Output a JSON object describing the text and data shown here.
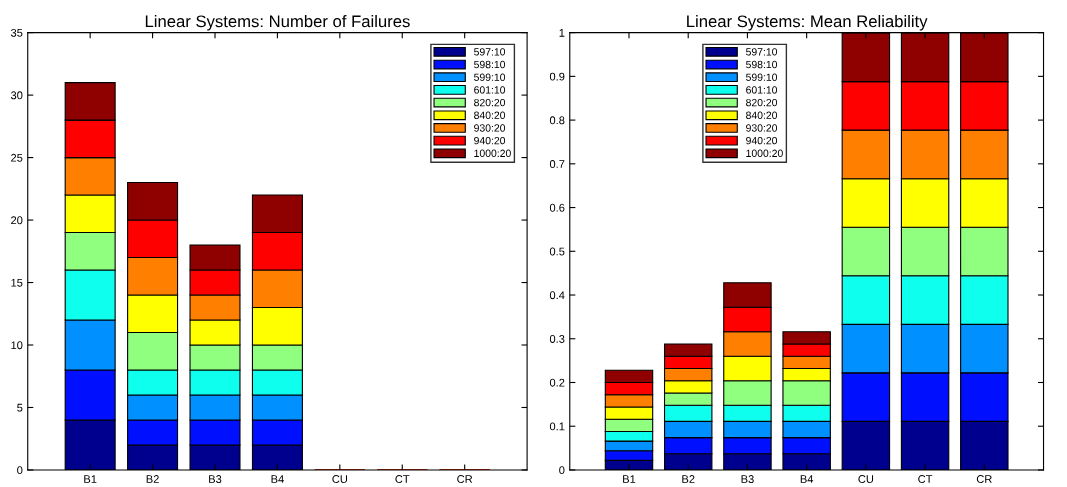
{
  "chart_data": [
    {
      "type": "bar",
      "title": "Linear Systems: Number of Failures",
      "stacked": true,
      "legend": "top right",
      "grid": false,
      "categories": [
        "B1",
        "B2",
        "B3",
        "B4",
        "CU",
        "CT",
        "CR"
      ],
      "ylim": [
        0,
        35
      ],
      "yticks": [
        0,
        5,
        10,
        15,
        20,
        25,
        30,
        35
      ],
      "series": [
        {
          "name": "597:10",
          "color": "#00008f",
          "values": [
            4,
            2,
            2,
            2,
            0,
            0,
            0
          ]
        },
        {
          "name": "598:10",
          "color": "#0010ff",
          "values": [
            4,
            2,
            2,
            2,
            0,
            0,
            0
          ]
        },
        {
          "name": "599:10",
          "color": "#0090ff",
          "values": [
            4,
            2,
            2,
            2,
            0,
            0,
            0
          ]
        },
        {
          "name": "601:10",
          "color": "#0fffef",
          "values": [
            4,
            2,
            2,
            2,
            0,
            0,
            0
          ]
        },
        {
          "name": "820:20",
          "color": "#90ff80",
          "values": [
            3,
            3,
            2,
            2,
            0,
            0,
            0
          ]
        },
        {
          "name": "840:20",
          "color": "#ffff00",
          "values": [
            3,
            3,
            2,
            3,
            0,
            0,
            0
          ]
        },
        {
          "name": "930:20",
          "color": "#ff8000",
          "values": [
            3,
            3,
            2,
            3,
            0,
            0,
            0
          ]
        },
        {
          "name": "940:20",
          "color": "#ff0000",
          "values": [
            3,
            3,
            2,
            3,
            0,
            0,
            0
          ]
        },
        {
          "name": "1000:20",
          "color": "#8f0000",
          "values": [
            3,
            3,
            2,
            3,
            0,
            0,
            0
          ]
        }
      ]
    },
    {
      "type": "bar",
      "title": "Linear Systems: Mean Reliability",
      "stacked": true,
      "legend": "top left",
      "grid": false,
      "categories": [
        "B1",
        "B2",
        "B3",
        "B4",
        "CU",
        "CT",
        "CR"
      ],
      "ylim": [
        0,
        1
      ],
      "yticks": [
        0,
        0.1,
        0.2,
        0.3,
        0.4,
        0.5,
        0.6,
        0.7,
        0.8,
        0.9,
        1
      ],
      "series": [
        {
          "name": "597:10",
          "color": "#00008f",
          "values": [
            0.022,
            0.037,
            0.037,
            0.037,
            0.111,
            0.111,
            0.111
          ]
        },
        {
          "name": "598:10",
          "color": "#0010ff",
          "values": [
            0.022,
            0.037,
            0.037,
            0.037,
            0.111,
            0.111,
            0.111
          ]
        },
        {
          "name": "599:10",
          "color": "#0090ff",
          "values": [
            0.022,
            0.037,
            0.037,
            0.037,
            0.111,
            0.111,
            0.111
          ]
        },
        {
          "name": "601:10",
          "color": "#0fffef",
          "values": [
            0.022,
            0.037,
            0.037,
            0.037,
            0.111,
            0.111,
            0.111
          ]
        },
        {
          "name": "820:20",
          "color": "#90ff80",
          "values": [
            0.028,
            0.028,
            0.056,
            0.056,
            0.111,
            0.111,
            0.111
          ]
        },
        {
          "name": "840:20",
          "color": "#ffff00",
          "values": [
            0.028,
            0.028,
            0.056,
            0.028,
            0.111,
            0.111,
            0.111
          ]
        },
        {
          "name": "930:20",
          "color": "#ff8000",
          "values": [
            0.028,
            0.028,
            0.056,
            0.028,
            0.111,
            0.111,
            0.111
          ]
        },
        {
          "name": "940:20",
          "color": "#ff0000",
          "values": [
            0.028,
            0.028,
            0.056,
            0.028,
            0.111,
            0.111,
            0.111
          ]
        },
        {
          "name": "1000:20",
          "color": "#8f0000",
          "values": [
            0.028,
            0.028,
            0.056,
            0.028,
            0.111,
            0.111,
            0.111
          ]
        }
      ]
    }
  ]
}
